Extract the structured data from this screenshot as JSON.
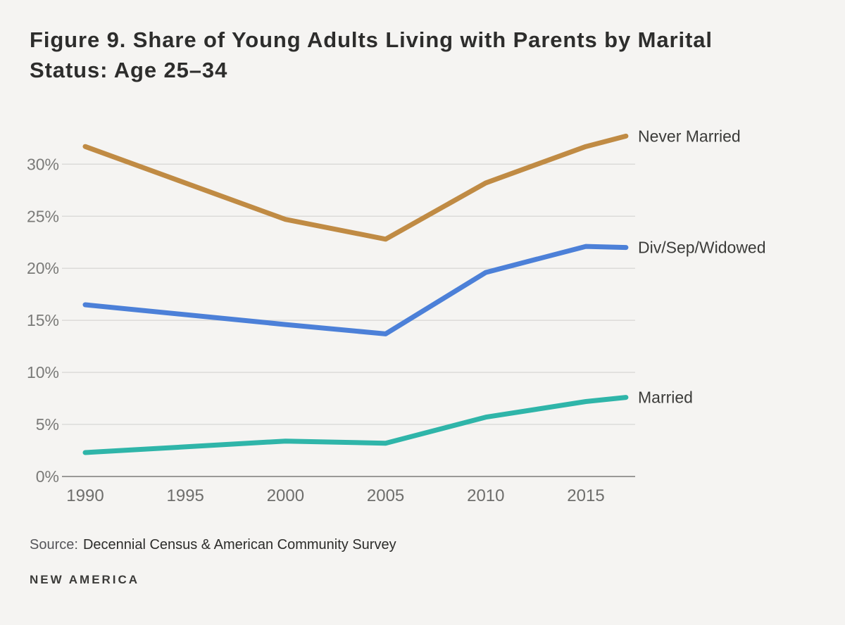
{
  "chart_data": {
    "type": "line",
    "title": "Figure 9. Share of Young Adults Living with Parents by Marital Status: Age 25–34",
    "x": [
      1990,
      2000,
      2005,
      2010,
      2015,
      2017
    ],
    "x_ticks": [
      1990,
      1995,
      2000,
      2005,
      2010,
      2015
    ],
    "y_ticks": [
      0,
      5,
      10,
      15,
      20,
      25,
      30
    ],
    "y_tick_suffix": "%",
    "xlim": [
      1990,
      2017
    ],
    "ylim": [
      0,
      34
    ],
    "grid": true,
    "legend_position": "end-of-line-labels",
    "xlabel": "",
    "ylabel": "",
    "series": [
      {
        "name": "Never Married",
        "color": "#c08b44",
        "values": [
          31.7,
          24.7,
          22.8,
          28.2,
          31.7,
          32.7
        ]
      },
      {
        "name": "Div/Sep/Widowed",
        "color": "#4c80d8",
        "values": [
          16.5,
          14.6,
          13.7,
          19.6,
          22.1,
          22.0
        ]
      },
      {
        "name": "Married",
        "color": "#2fb5a9",
        "values": [
          2.3,
          3.4,
          3.2,
          5.7,
          7.2,
          7.6
        ]
      }
    ]
  },
  "footer": {
    "source_label": "Source:",
    "source_text": "Decennial Census & American Community Survey",
    "brand": "NEW AMERICA"
  },
  "colors": {
    "background": "#f5f4f2",
    "grid": "#dcdbd9",
    "axis": "#9a9997",
    "y_tick_label": "#7a7a78",
    "x_tick_label": "#6e6e6c",
    "series_label": "#3b3b39",
    "title": "#2d2d2c"
  }
}
